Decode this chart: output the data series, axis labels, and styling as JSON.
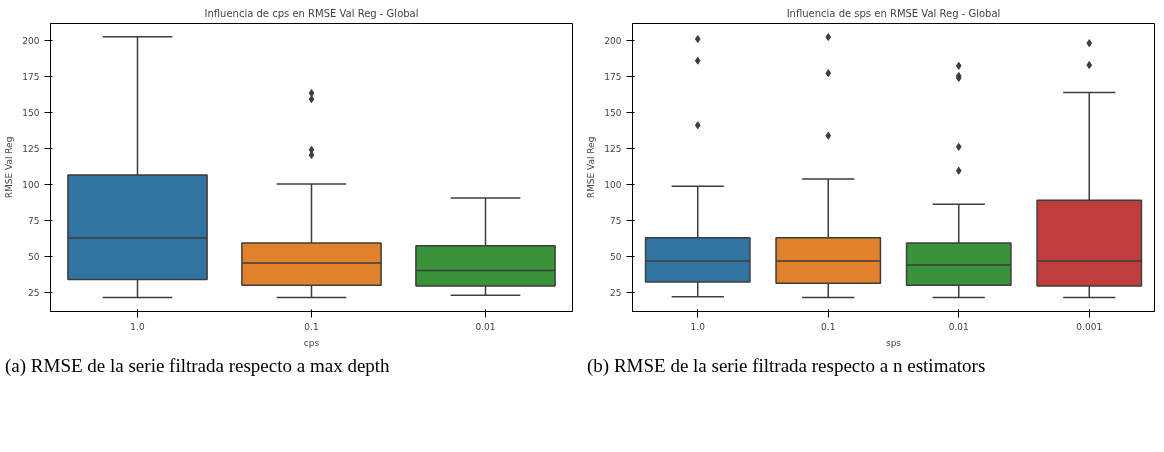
{
  "chart_data": [
    {
      "type": "box",
      "title": "Influencia de cps en RMSE Val Reg - Global",
      "xlabel": "cps",
      "ylabel": "RMSE Val Reg",
      "categories": [
        "1.0",
        "0.1",
        "0.01"
      ],
      "colors": [
        "#3274a1",
        "#e1812c",
        "#3a923a"
      ],
      "boxes": [
        {
          "low": 21.7,
          "q1": 34.1,
          "median": 62.9,
          "q3": 106.6,
          "high": 202.3
        },
        {
          "low": 21.7,
          "q1": 30.1,
          "median": 45.6,
          "q3": 59.4,
          "high": 100.3,
          "outliers": [
            163.3,
            159.1,
            124.0,
            120.4
          ]
        },
        {
          "low": 23.3,
          "q1": 29.7,
          "median": 40.4,
          "q3": 57.5,
          "high": 90.7
        }
      ],
      "ylim": [
        12,
        211.5
      ],
      "yticks": [
        25,
        50,
        75,
        100,
        125,
        150,
        175,
        200
      ],
      "grid": false,
      "marker": "diamond",
      "annotations": [
        "(a) RMSE de la serie filtrada respecto a max depth"
      ]
    },
    {
      "type": "box",
      "title": "Influencia de sps en RMSE Val Reg - Global",
      "xlabel": "sps",
      "ylabel": "RMSE Val Reg",
      "categories": [
        "1.0",
        "0.1",
        "0.01",
        "0.001"
      ],
      "colors": [
        "#3274a1",
        "#e1812c",
        "#3a923a",
        "#c03d3e"
      ],
      "boxes": [
        {
          "low": 22.2,
          "q1": 32.5,
          "median": 47.0,
          "q3": 63.1,
          "high": 98.7,
          "outliers": [
            200.7,
            185.7,
            141.0
          ]
        },
        {
          "low": 21.7,
          "q1": 31.5,
          "median": 47.0,
          "q3": 63.1,
          "high": 103.8,
          "outliers": [
            202.1,
            177.1,
            133.8
          ]
        },
        {
          "low": 21.7,
          "q1": 30.1,
          "median": 44.2,
          "q3": 59.4,
          "high": 86.3,
          "outliers": [
            182.2,
            175.2,
            173.8,
            126.1,
            109.5
          ]
        },
        {
          "low": 21.7,
          "q1": 29.7,
          "median": 47.0,
          "q3": 89.1,
          "high": 163.7,
          "outliers": [
            197.9,
            182.7
          ]
        }
      ],
      "ylim": [
        12,
        211.5
      ],
      "yticks": [
        25,
        50,
        75,
        100,
        125,
        150,
        175,
        200
      ],
      "grid": false,
      "marker": "diamond",
      "annotations": [
        "(b) RMSE de la serie filtrada respecto a n estimators"
      ]
    }
  ]
}
